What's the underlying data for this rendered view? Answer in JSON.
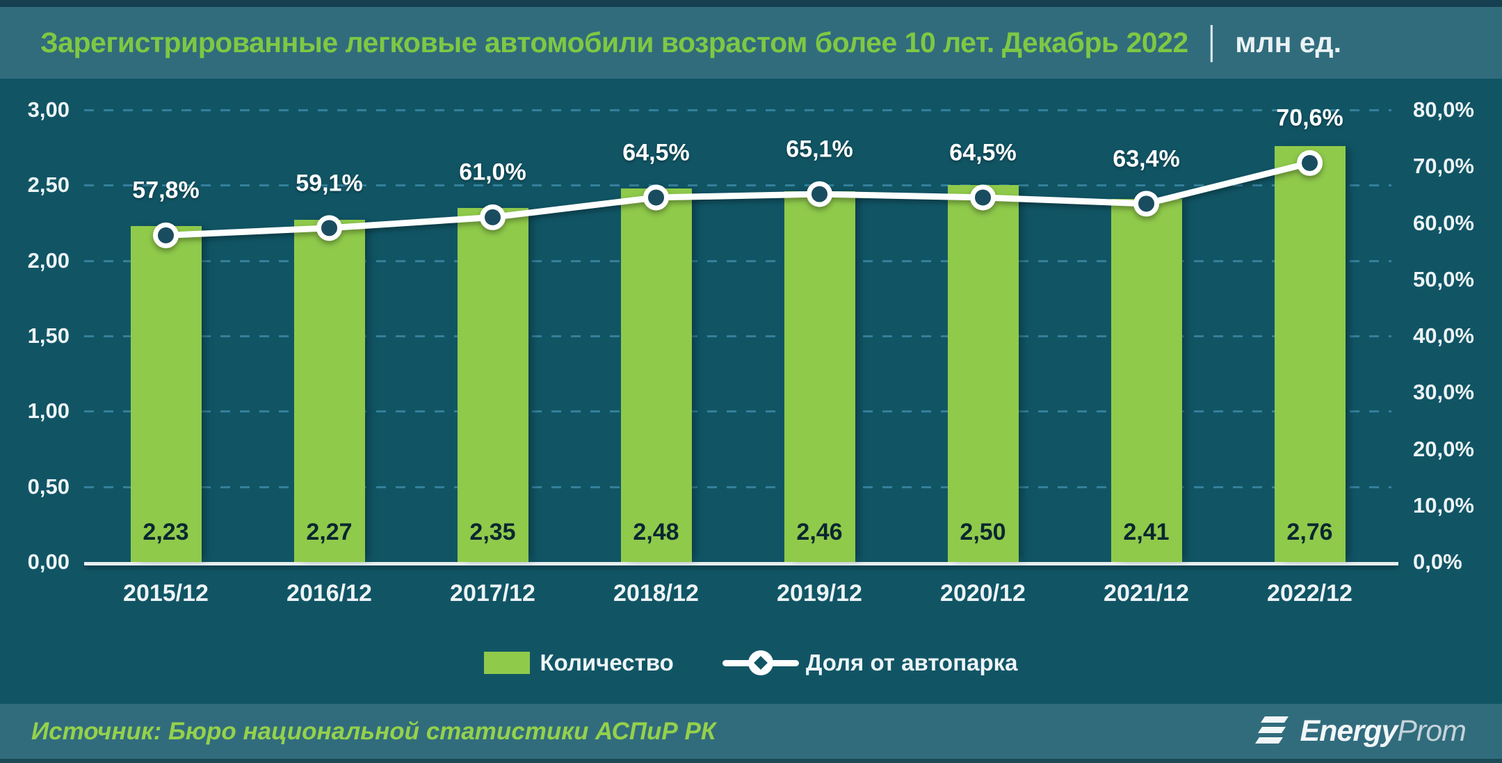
{
  "title": {
    "main": "Зарегистрированные легковые автомобили возрастом более 10 лет. Декабрь 2022",
    "separator": "│",
    "unit": "млн ед."
  },
  "chart_data": {
    "type": "bar+line",
    "categories": [
      "2015/12",
      "2016/12",
      "2017/12",
      "2018/12",
      "2019/12",
      "2020/12",
      "2021/12",
      "2022/12"
    ],
    "series": [
      {
        "name": "Количество",
        "type": "bar",
        "axis": "left",
        "values": [
          2.23,
          2.27,
          2.35,
          2.48,
          2.46,
          2.5,
          2.41,
          2.76
        ],
        "labels": [
          "2,23",
          "2,27",
          "2,35",
          "2,48",
          "2,46",
          "2,50",
          "2,41",
          "2,76"
        ]
      },
      {
        "name": "Доля от автопарка",
        "type": "line",
        "axis": "right",
        "values": [
          57.8,
          59.1,
          61.0,
          64.5,
          65.1,
          64.5,
          63.4,
          70.6
        ],
        "labels": [
          "57,8%",
          "59,1%",
          "61,0%",
          "64,5%",
          "65,1%",
          "64,5%",
          "63,4%",
          "70,6%"
        ]
      }
    ],
    "left_axis": {
      "min": 0,
      "max": 3,
      "step": 0.5,
      "tick_labels": [
        "3,00",
        "2,50",
        "2,00",
        "1,50",
        "1,00",
        "0,50",
        "0,00"
      ]
    },
    "right_axis": {
      "min": 0,
      "max": 80,
      "step": 10,
      "tick_labels": [
        "80,0%",
        "70,0%",
        "60,0%",
        "50,0%",
        "40,0%",
        "30,0%",
        "20,0%",
        "10,0%",
        "0,0%"
      ]
    },
    "grid": "horizontal-dashed",
    "legend_position": "bottom"
  },
  "legend": {
    "items": [
      {
        "label": "Количество",
        "swatch": "green-bar"
      },
      {
        "label": "Доля от автопарка",
        "swatch": "white-line-marker"
      }
    ]
  },
  "footer": {
    "source": "Источник: Бюро национальной статистики АСПиР РК",
    "logo_bold": "Energy",
    "logo_light": "Prom"
  },
  "colors": {
    "bar_green": "#8fca4b",
    "chart_background": "#115565",
    "band_background": "#316c7d",
    "line_white": "#fdfefe",
    "marker_fill": "#1a4c60",
    "grid_dash": "#35809a",
    "title_green": "#7fc843",
    "source_green": "#95d14b",
    "axis_text": "#edf4f6",
    "bar_label_text": "#0a2730"
  }
}
